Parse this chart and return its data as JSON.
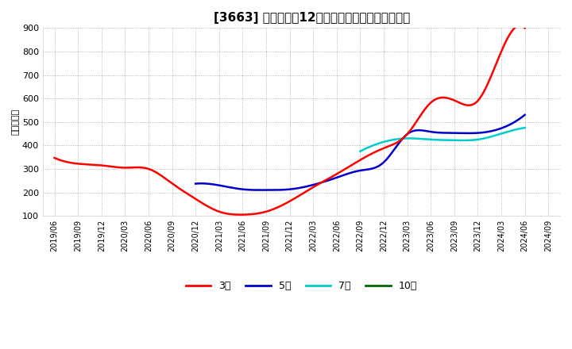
{
  "title": "[3663] 当期純利益12か月移動合計の平均値の推移",
  "ylabel": "（百万円）",
  "ylim": [
    100,
    900
  ],
  "yticks": [
    100,
    200,
    300,
    400,
    500,
    600,
    700,
    800,
    900
  ],
  "background_color": "#ffffff",
  "plot_bg_color": "#ffffff",
  "grid_color": "#999999",
  "title_fontsize": 11,
  "legend_labels": [
    "3年",
    "5年",
    "7年",
    "10年"
  ],
  "legend_colors": [
    "#ff0000",
    "#0000cc",
    "#00cccc",
    "#006600"
  ],
  "x_labels": [
    "2019/06",
    "2019/09",
    "2019/12",
    "2020/03",
    "2020/06",
    "2020/09",
    "2020/12",
    "2021/03",
    "2021/06",
    "2021/09",
    "2021/12",
    "2022/03",
    "2022/06",
    "2022/09",
    "2022/12",
    "2023/03",
    "2023/06",
    "2023/09",
    "2023/12",
    "2024/03",
    "2024/06",
    "2024/09"
  ],
  "series_3y": {
    "color": "#ff0000",
    "x": [
      0,
      1,
      2,
      3,
      4,
      5,
      6,
      7,
      8,
      9,
      10,
      11,
      12,
      13,
      14,
      15,
      16,
      17,
      18,
      19,
      20
    ],
    "y": [
      347,
      322,
      315,
      305,
      300,
      238,
      172,
      118,
      105,
      118,
      162,
      222,
      278,
      338,
      388,
      448,
      582,
      592,
      590,
      800,
      900
    ]
  },
  "series_5y": {
    "color": "#0000cc",
    "x": [
      6,
      7,
      8,
      9,
      10,
      11,
      12,
      13,
      14,
      15,
      16,
      17,
      18,
      19,
      20
    ],
    "y": [
      237,
      230,
      213,
      210,
      213,
      232,
      263,
      293,
      328,
      448,
      458,
      453,
      453,
      473,
      530
    ]
  },
  "series_7y": {
    "color": "#00cccc",
    "x": [
      13,
      14,
      15,
      16,
      17,
      18,
      19,
      20
    ],
    "y": [
      375,
      415,
      430,
      425,
      422,
      425,
      450,
      475
    ]
  },
  "series_10y": {
    "color": "#006600",
    "x": [],
    "y": []
  }
}
